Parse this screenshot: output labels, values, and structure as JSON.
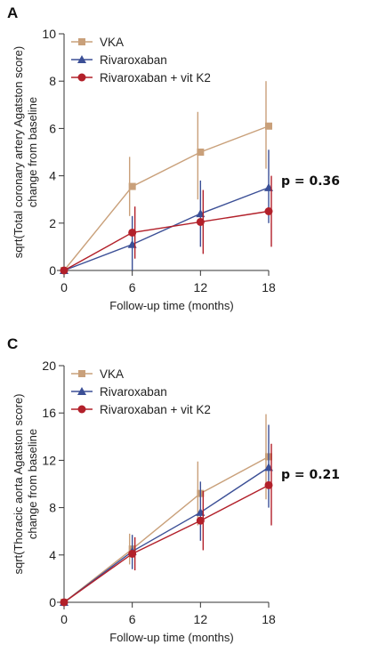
{
  "chart_data": [
    {
      "type": "line",
      "panel": "A",
      "ylabel_lines": [
        "sqrt(Total coronary artery Agatston score)",
        "change from baseline"
      ],
      "xlabel": "Follow-up time (months)",
      "x": [
        0,
        6,
        12,
        18
      ],
      "xticks": [
        "0",
        "6",
        "12",
        "18"
      ],
      "yticks": [
        "0",
        "2",
        "4",
        "6",
        "8",
        "10"
      ],
      "ylim": [
        0,
        10
      ],
      "xlim": [
        0,
        18
      ],
      "legend_position": "top-left",
      "annotation": "p = 0.36",
      "series": [
        {
          "name": "VKA",
          "color": "#c9a07a",
          "marker": "square",
          "values": [
            0,
            3.55,
            5.0,
            6.1
          ],
          "err_low": [
            0,
            2.3,
            3.0,
            4.3
          ],
          "err_high": [
            0,
            4.8,
            6.7,
            8.0
          ]
        },
        {
          "name": "Rivaroxaban",
          "color": "#3b4f96",
          "marker": "triangle",
          "values": [
            0,
            1.1,
            2.4,
            3.5
          ],
          "err_low": [
            0,
            0.0,
            1.0,
            2.0
          ],
          "err_high": [
            0,
            2.3,
            3.8,
            5.1
          ]
        },
        {
          "name": "Rivaroxaban + vit K2",
          "color": "#b2202a",
          "marker": "circle",
          "values": [
            0,
            1.6,
            2.05,
            2.5
          ],
          "err_low": [
            0,
            0.5,
            0.7,
            1.0
          ],
          "err_high": [
            0,
            2.7,
            3.4,
            4.0
          ]
        }
      ]
    },
    {
      "type": "line",
      "panel": "C",
      "ylabel_lines": [
        "sqrt(Thoracic aorta Agatston score)",
        "change from baseline"
      ],
      "xlabel": "Follow-up time (months)",
      "x": [
        0,
        6,
        12,
        18
      ],
      "xticks": [
        "0",
        "6",
        "12",
        "18"
      ],
      "yticks": [
        "0",
        "4",
        "8",
        "12",
        "16",
        "20"
      ],
      "ylim": [
        0,
        20
      ],
      "xlim": [
        0,
        18
      ],
      "legend_position": "top-left",
      "annotation": "p = 0.21",
      "series": [
        {
          "name": "VKA",
          "color": "#c9a07a",
          "marker": "square",
          "values": [
            0,
            4.5,
            9.2,
            12.3
          ],
          "err_low": [
            0,
            3.2,
            6.5,
            8.7
          ],
          "err_high": [
            0,
            5.8,
            11.9,
            15.9
          ]
        },
        {
          "name": "Rivaroxaban",
          "color": "#3b4f96",
          "marker": "triangle",
          "values": [
            0,
            4.3,
            7.6,
            11.4
          ],
          "err_low": [
            0,
            2.8,
            5.2,
            8.0
          ],
          "err_high": [
            0,
            5.7,
            10.2,
            15.0
          ]
        },
        {
          "name": "Rivaroxaban + vit K2",
          "color": "#b2202a",
          "marker": "circle",
          "values": [
            0,
            4.1,
            6.9,
            9.9
          ],
          "err_low": [
            0,
            2.7,
            4.4,
            6.5
          ],
          "err_high": [
            0,
            5.5,
            9.4,
            13.4
          ]
        }
      ]
    }
  ]
}
